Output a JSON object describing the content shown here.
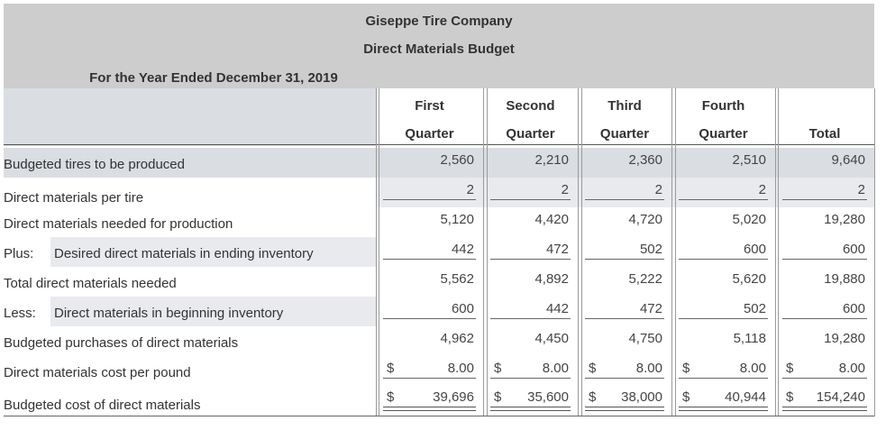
{
  "header": {
    "company": "Giseppe Tire Company",
    "title": "Direct Materials Budget",
    "period": "For the Year Ended December 31, 2019"
  },
  "columns": [
    {
      "line1": "First",
      "line2": "Quarter"
    },
    {
      "line1": "Second",
      "line2": "Quarter"
    },
    {
      "line1": "Third",
      "line2": "Quarter"
    },
    {
      "line1": "Fourth",
      "line2": "Quarter"
    },
    {
      "line1": "",
      "line2": "Total"
    }
  ],
  "rows": [
    {
      "prefix": "",
      "label": "Budgeted tires to be produced",
      "values": [
        "2,560",
        "2,210",
        "2,360",
        "2,510",
        "9,640"
      ],
      "dollar": false
    },
    {
      "prefix": "",
      "label": "Direct materials per tire",
      "values": [
        "2",
        "2",
        "2",
        "2",
        "2"
      ],
      "dollar": false
    },
    {
      "prefix": "",
      "label": "Direct materials needed for production",
      "values": [
        "5,120",
        "4,420",
        "4,720",
        "5,020",
        "19,280"
      ],
      "dollar": false
    },
    {
      "prefix": "Plus:",
      "label": "Desired direct materials in ending inventory",
      "values": [
        "442",
        "472",
        "502",
        "600",
        "600"
      ],
      "dollar": false
    },
    {
      "prefix": "",
      "label": "Total direct materials needed",
      "values": [
        "5,562",
        "4,892",
        "5,222",
        "5,620",
        "19,880"
      ],
      "dollar": false
    },
    {
      "prefix": "Less:",
      "label": "Direct materials in beginning inventory",
      "values": [
        "600",
        "442",
        "472",
        "502",
        "600"
      ],
      "dollar": false
    },
    {
      "prefix": "",
      "label": "Budgeted purchases of direct materials",
      "values": [
        "4,962",
        "4,450",
        "4,750",
        "5,118",
        "19,280"
      ],
      "dollar": false
    },
    {
      "prefix": "",
      "label": "Direct materials cost per pound",
      "values": [
        "8.00",
        "8.00",
        "8.00",
        "8.00",
        "8.00"
      ],
      "dollar": true,
      "dollar_sign": "$"
    },
    {
      "prefix": "",
      "label": "Budgeted cost of direct materials",
      "values": [
        "39,696",
        "35,600",
        "38,000",
        "40,944",
        "154,240"
      ],
      "dollar": true,
      "dollar_sign": "$"
    }
  ]
}
